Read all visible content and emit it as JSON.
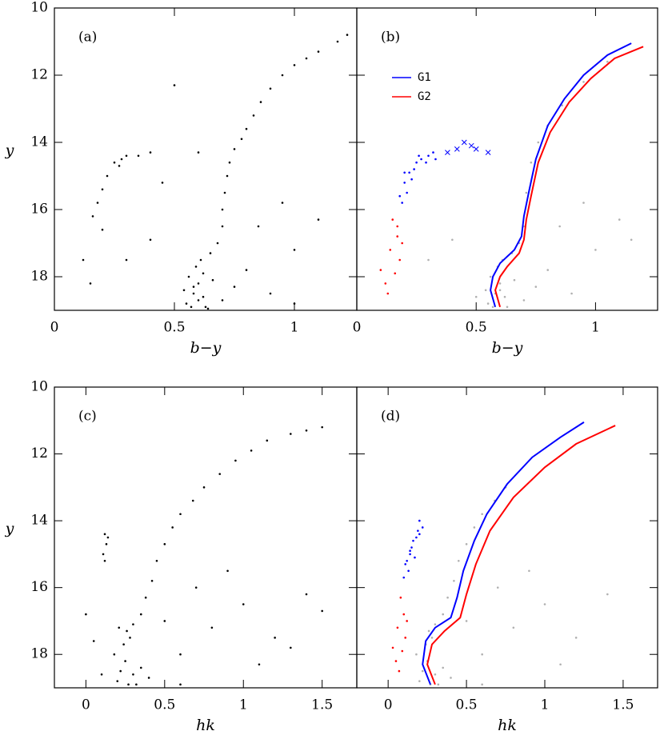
{
  "chart_data": [
    {
      "type": "scatter",
      "label": "(a)",
      "xlabel": "b−y",
      "ylabel": "y",
      "xlim": [
        0,
        1.26
      ],
      "ylim": [
        19,
        10
      ],
      "xticks": [
        0,
        0.5,
        1
      ],
      "yticks": [
        10,
        12,
        14,
        16,
        18
      ],
      "show_yticklabels": true,
      "series": [
        {
          "color": "#000000",
          "marker": "dot",
          "x": [
            0.55,
            0.58,
            0.6,
            0.57,
            0.62,
            0.56,
            0.59,
            0.61,
            0.63,
            0.54,
            0.65,
            0.68,
            0.7,
            0.7,
            0.71,
            0.72,
            0.73,
            0.75,
            0.78,
            0.8,
            0.83,
            0.86,
            0.9,
            0.95,
            1.0,
            1.05,
            1.1,
            1.18,
            1.22,
            0.8,
            0.9,
            1.0,
            0.85,
            1.1,
            0.95,
            0.4,
            0.3,
            0.2,
            0.45,
            0.6,
            0.5,
            0.15,
            1.0,
            0.75,
            0.7,
            0.66,
            0.22,
            0.25,
            0.28,
            0.3,
            0.2,
            0.18,
            0.35,
            0.4,
            0.16,
            0.12,
            0.27,
            0.58,
            0.6,
            0.62,
            0.64
          ],
          "y": [
            18.8,
            18.5,
            18.2,
            18.9,
            18.6,
            18.0,
            17.7,
            17.5,
            18.9,
            18.4,
            17.3,
            17.0,
            16.5,
            16.0,
            15.5,
            15.0,
            14.6,
            14.2,
            13.9,
            13.6,
            13.2,
            12.8,
            12.4,
            12.0,
            11.7,
            11.5,
            11.3,
            11.0,
            10.8,
            17.8,
            18.5,
            17.2,
            16.5,
            16.3,
            15.8,
            16.9,
            17.5,
            16.6,
            15.2,
            14.3,
            12.3,
            18.2,
            18.8,
            18.3,
            18.7,
            18.1,
            15.0,
            14.6,
            14.5,
            14.4,
            15.4,
            15.8,
            14.4,
            14.3,
            16.2,
            17.5,
            14.7,
            18.3,
            18.7,
            17.9,
            18.95
          ]
        }
      ]
    },
    {
      "type": "scatter",
      "label": "(b)",
      "xlabel": "b−y",
      "xlim": [
        0,
        1.26
      ],
      "ylim": [
        19,
        10
      ],
      "xticks": [
        0,
        0.5,
        1
      ],
      "yticks": [
        10,
        12,
        14,
        16,
        18
      ],
      "show_yticklabels": false,
      "series": [
        {
          "color": "#b0b0b0",
          "marker": "dot",
          "x": [
            0.55,
            0.58,
            0.6,
            0.57,
            0.62,
            0.56,
            0.59,
            0.61,
            0.63,
            0.54,
            0.65,
            0.68,
            0.7,
            0.71,
            0.73,
            0.76,
            0.8,
            0.86,
            0.95,
            1.05,
            0.8,
            0.9,
            1.0,
            0.85,
            1.1,
            0.95,
            0.4,
            0.3,
            0.75,
            0.7,
            0.66,
            1.15,
            0.5,
            0.6
          ],
          "y": [
            18.8,
            18.5,
            18.2,
            18.9,
            18.6,
            18.0,
            17.7,
            17.5,
            18.9,
            18.4,
            17.3,
            17.0,
            16.5,
            15.5,
            14.6,
            14.0,
            13.5,
            12.9,
            12.2,
            11.6,
            17.8,
            18.5,
            17.2,
            16.5,
            16.3,
            15.8,
            16.9,
            17.5,
            18.3,
            18.7,
            18.1,
            16.9,
            18.6,
            18.4
          ]
        },
        {
          "color": "#0000ff",
          "marker": "dot",
          "x": [
            0.2,
            0.22,
            0.25,
            0.27,
            0.3,
            0.32,
            0.24,
            0.21,
            0.19,
            0.18,
            0.26,
            0.29,
            0.33,
            0.23,
            0.2
          ],
          "y": [
            15.2,
            14.9,
            14.6,
            14.5,
            14.4,
            14.3,
            14.8,
            15.5,
            15.8,
            15.6,
            14.4,
            14.6,
            14.5,
            15.1,
            14.9
          ]
        },
        {
          "color": "#0000ff",
          "marker": "cross",
          "x": [
            0.38,
            0.42,
            0.45,
            0.5,
            0.55,
            0.48
          ],
          "y": [
            14.3,
            14.2,
            14.0,
            14.2,
            14.3,
            14.1
          ]
        },
        {
          "color": "#ff0000",
          "marker": "dot",
          "x": [
            0.15,
            0.17,
            0.14,
            0.18,
            0.16,
            0.12,
            0.19,
            0.13,
            0.1,
            0.17
          ],
          "y": [
            16.3,
            16.8,
            17.2,
            17.5,
            17.9,
            18.2,
            17.0,
            18.5,
            17.8,
            16.5
          ]
        },
        {
          "type": "line",
          "name": "G1",
          "color": "#0000ff",
          "x": [
            0.58,
            0.56,
            0.57,
            0.6,
            0.66,
            0.69,
            0.7,
            0.72,
            0.75,
            0.8,
            0.87,
            0.95,
            1.05,
            1.15
          ],
          "y": [
            18.9,
            18.4,
            18.0,
            17.6,
            17.2,
            16.8,
            16.2,
            15.5,
            14.5,
            13.5,
            12.7,
            12.0,
            11.4,
            11.05
          ]
        },
        {
          "type": "line",
          "name": "G2",
          "color": "#ff0000",
          "x": [
            0.6,
            0.58,
            0.6,
            0.63,
            0.68,
            0.7,
            0.71,
            0.73,
            0.76,
            0.81,
            0.89,
            0.98,
            1.08,
            1.2
          ],
          "y": [
            18.9,
            18.4,
            18.0,
            17.7,
            17.3,
            16.9,
            16.3,
            15.6,
            14.6,
            13.7,
            12.8,
            12.1,
            11.5,
            11.15
          ]
        }
      ]
    },
    {
      "type": "scatter",
      "label": "(c)",
      "xlabel": "hk",
      "ylabel": "y",
      "xlim": [
        -0.2,
        1.72
      ],
      "ylim": [
        19,
        10
      ],
      "xticks": [
        0,
        0.5,
        1,
        1.5
      ],
      "yticks": [
        10,
        12,
        14,
        16,
        18
      ],
      "show_yticklabels": true,
      "series": [
        {
          "color": "#000000",
          "marker": "dot",
          "x": [
            0.2,
            0.22,
            0.25,
            0.27,
            0.3,
            0.18,
            0.24,
            0.28,
            0.32,
            0.35,
            0.21,
            0.26,
            0.3,
            0.35,
            0.38,
            0.42,
            0.45,
            0.5,
            0.55,
            0.6,
            0.68,
            0.75,
            0.85,
            0.95,
            1.05,
            1.15,
            1.3,
            1.4,
            1.5,
            0.12,
            0.13,
            0.11,
            0.14,
            0.12,
            0.6,
            0.8,
            1.0,
            1.2,
            1.4,
            0.5,
            0.7,
            0.9,
            1.1,
            1.3,
            1.5,
            0.05,
            0.0,
            0.1,
            0.4,
            0.6
          ],
          "y": [
            18.8,
            18.5,
            18.2,
            18.9,
            18.6,
            18.0,
            17.7,
            17.5,
            18.9,
            18.4,
            17.2,
            17.3,
            17.1,
            16.8,
            16.3,
            15.8,
            15.2,
            14.7,
            14.2,
            13.8,
            13.4,
            13.0,
            12.6,
            12.2,
            11.9,
            11.6,
            11.4,
            11.3,
            11.2,
            14.4,
            14.7,
            15.0,
            14.5,
            15.2,
            18.0,
            17.2,
            16.5,
            17.5,
            16.2,
            17.0,
            16.0,
            15.5,
            18.3,
            17.8,
            16.7,
            17.6,
            16.8,
            18.6,
            18.7,
            18.9
          ]
        }
      ]
    },
    {
      "type": "scatter",
      "label": "(d)",
      "xlabel": "hk",
      "xlim": [
        -0.2,
        1.72
      ],
      "ylim": [
        19,
        10
      ],
      "xticks": [
        0,
        0.5,
        1,
        1.5
      ],
      "yticks": [
        10,
        12,
        14,
        16,
        18
      ],
      "show_yticklabels": false,
      "series": [
        {
          "color": "#b0b0b0",
          "marker": "dot",
          "x": [
            0.2,
            0.22,
            0.25,
            0.27,
            0.3,
            0.18,
            0.24,
            0.28,
            0.32,
            0.35,
            0.26,
            0.3,
            0.35,
            0.38,
            0.42,
            0.45,
            0.5,
            0.55,
            0.6,
            0.68,
            0.75,
            0.6,
            0.8,
            1.0,
            1.2,
            1.4,
            0.5,
            0.7,
            0.9,
            1.1,
            0.4,
            0.6
          ],
          "y": [
            18.8,
            18.5,
            18.2,
            18.9,
            18.6,
            18.0,
            17.7,
            17.5,
            18.9,
            18.4,
            17.3,
            17.1,
            16.8,
            16.3,
            15.8,
            15.2,
            14.7,
            14.2,
            13.8,
            13.4,
            13.0,
            18.0,
            17.2,
            16.5,
            17.5,
            16.2,
            17.0,
            16.0,
            15.5,
            18.3,
            18.7,
            18.9
          ]
        },
        {
          "color": "#0000ff",
          "marker": "dot",
          "x": [
            0.12,
            0.14,
            0.16,
            0.18,
            0.2,
            0.22,
            0.15,
            0.13,
            0.1,
            0.17,
            0.19,
            0.11,
            0.14,
            0.2
          ],
          "y": [
            15.2,
            14.9,
            14.6,
            14.5,
            14.4,
            14.2,
            14.8,
            15.5,
            15.7,
            15.1,
            14.3,
            15.3,
            15.0,
            14.0
          ]
        },
        {
          "color": "#ff0000",
          "marker": "dot",
          "x": [
            0.08,
            0.1,
            0.06,
            0.11,
            0.09,
            0.05,
            0.12,
            0.07,
            0.03
          ],
          "y": [
            16.3,
            16.8,
            17.2,
            17.5,
            17.9,
            18.2,
            17.0,
            18.5,
            17.8
          ]
        },
        {
          "type": "line",
          "color": "#0000ff",
          "x": [
            0.27,
            0.22,
            0.24,
            0.3,
            0.4,
            0.44,
            0.48,
            0.55,
            0.63,
            0.76,
            0.92,
            1.1,
            1.25
          ],
          "y": [
            18.9,
            18.3,
            17.6,
            17.2,
            16.9,
            16.3,
            15.5,
            14.6,
            13.8,
            12.9,
            12.1,
            11.5,
            11.05
          ]
        },
        {
          "type": "line",
          "color": "#ff0000",
          "x": [
            0.3,
            0.25,
            0.28,
            0.36,
            0.46,
            0.5,
            0.56,
            0.65,
            0.8,
            1.0,
            1.2,
            1.45
          ],
          "y": [
            18.9,
            18.3,
            17.7,
            17.3,
            16.9,
            16.2,
            15.3,
            14.3,
            13.3,
            12.4,
            11.7,
            11.15
          ]
        }
      ]
    }
  ]
}
